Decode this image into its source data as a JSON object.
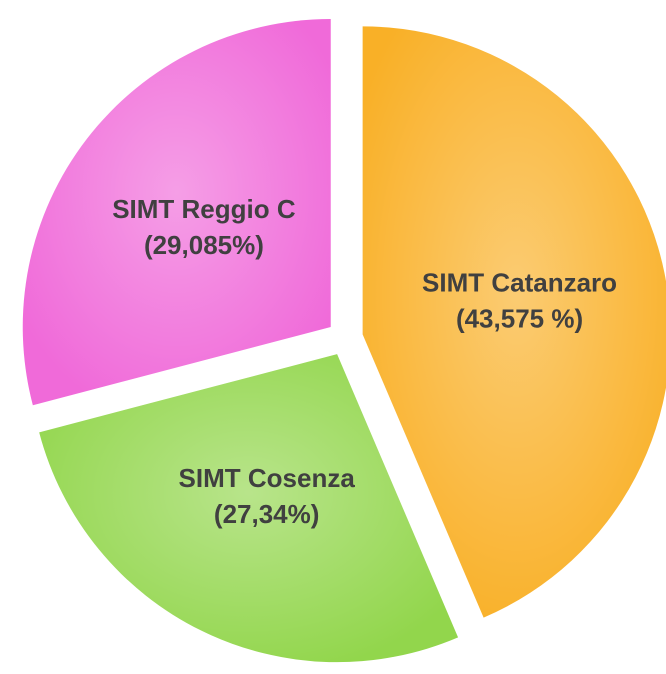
{
  "chart_data": {
    "type": "pie",
    "categories": [
      "SIMT Catanzaro",
      "SIMT Cosenza",
      "SIMT Reggio C"
    ],
    "values": [
      43.575,
      27.34,
      29.085
    ],
    "value_labels": [
      "(43,575 %)",
      "(27,34%)",
      "(29,085%)"
    ],
    "colors": [
      "#f9b027",
      "#92d64c",
      "#f06ad9"
    ]
  }
}
